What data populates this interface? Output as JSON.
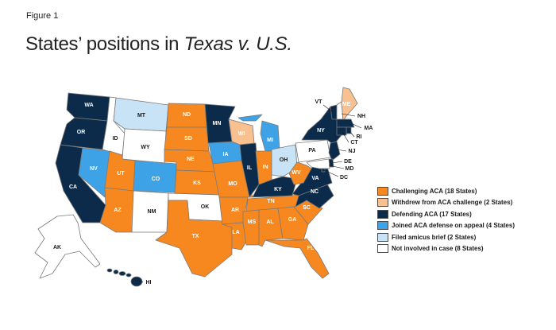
{
  "figure_label": "Figure 1",
  "title": {
    "main": "States’ positions in ",
    "italic": "Texas v. U.S."
  },
  "colors": {
    "challenging": "#f7881f",
    "withdrew": "#f9c090",
    "defending": "#0c2b4b",
    "joined": "#3ea3e6",
    "amicus": "#c8e3f6",
    "none": "#ffffff"
  },
  "legend": [
    {
      "key": "challenging",
      "label": "Challenging ACA  (18 States)"
    },
    {
      "key": "withdrew",
      "label": "Withdrew from ACA  challenge (2 States)"
    },
    {
      "key": "defending",
      "label": "Defending ACA (17 States)"
    },
    {
      "key": "joined",
      "label": "Joined ACA  defense on appeal (4 States)"
    },
    {
      "key": "amicus",
      "label": "Filed amicus  brief (2 States)"
    },
    {
      "key": "none",
      "label": "Not involved in case (8 States)"
    }
  ],
  "states": {
    "WA": "defending",
    "OR": "defending",
    "CA": "defending",
    "NV": "joined",
    "ID": "none",
    "MT": "amicus",
    "WY": "none",
    "UT": "challenging",
    "CO": "joined",
    "AZ": "challenging",
    "NM": "none",
    "ND": "challenging",
    "SD": "challenging",
    "NE": "challenging",
    "KS": "challenging",
    "OK": "none",
    "TX": "challenging",
    "MN": "defending",
    "IA": "joined",
    "MO": "challenging",
    "AR": "challenging",
    "LA": "challenging",
    "WI": "withdrew",
    "IL": "defending",
    "MI": "joined",
    "IN": "challenging",
    "OH": "amicus",
    "KY": "defending",
    "TN": "challenging",
    "MS": "challenging",
    "AL": "challenging",
    "GA": "challenging",
    "FL": "challenging",
    "SC": "challenging",
    "NC": "defending",
    "VA": "defending",
    "WV": "challenging",
    "PA": "none",
    "NY": "defending",
    "VT": "defending",
    "NH": "none",
    "ME": "withdrew",
    "MA": "defending",
    "RI": "defending",
    "CT": "defending",
    "NJ": "defending",
    "DE": "defending",
    "MD": "none",
    "DC": "defending",
    "AK": "none",
    "HI": "defending"
  }
}
